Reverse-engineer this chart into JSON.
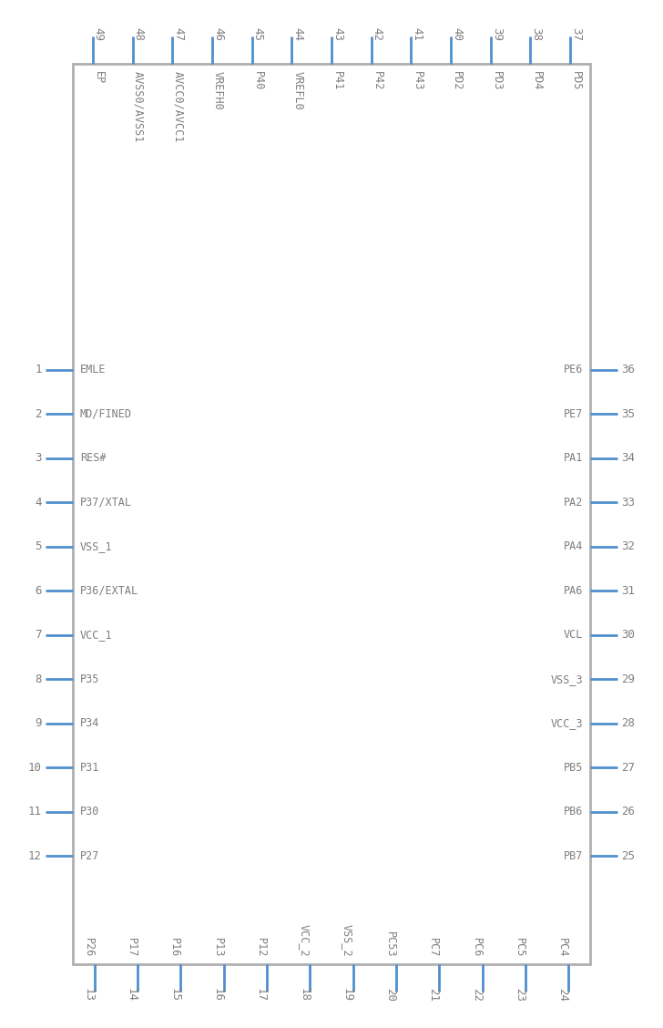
{
  "box_color": "#b0b0b0",
  "pin_color": "#4f8fcd",
  "text_color": "#7f7f7f",
  "bg_color": "#ffffff",
  "top_pins": [
    {
      "num": "49",
      "label": "EP"
    },
    {
      "num": "48",
      "label": "AVSS0/AVSS1"
    },
    {
      "num": "47",
      "label": "AVCC0/AVCC1"
    },
    {
      "num": "46",
      "label": "VREFH0"
    },
    {
      "num": "45",
      "label": "P40"
    },
    {
      "num": "44",
      "label": "VREFL0"
    },
    {
      "num": "43",
      "label": "P41"
    },
    {
      "num": "42",
      "label": "P42"
    },
    {
      "num": "41",
      "label": "P43"
    },
    {
      "num": "40",
      "label": "PD2"
    },
    {
      "num": "39",
      "label": "PD3"
    },
    {
      "num": "38",
      "label": "PD4"
    },
    {
      "num": "37",
      "label": "PD5"
    }
  ],
  "bottom_pins": [
    {
      "num": "13",
      "label": "P26"
    },
    {
      "num": "14",
      "label": "P17"
    },
    {
      "num": "15",
      "label": "P16"
    },
    {
      "num": "16",
      "label": "P13"
    },
    {
      "num": "17",
      "label": "P12"
    },
    {
      "num": "18",
      "label": "VCC_2"
    },
    {
      "num": "19",
      "label": "VSS_2"
    },
    {
      "num": "20",
      "label": "PC53"
    },
    {
      "num": "21",
      "label": "PC7"
    },
    {
      "num": "22",
      "label": "PC6"
    },
    {
      "num": "23",
      "label": "PC5"
    },
    {
      "num": "24",
      "label": "PC4"
    }
  ],
  "left_pins": [
    {
      "num": "1",
      "label": "EMLE"
    },
    {
      "num": "2",
      "label": "MD/FINED"
    },
    {
      "num": "3",
      "label": "RES#"
    },
    {
      "num": "4",
      "label": "P37/XTAL"
    },
    {
      "num": "5",
      "label": "VSS_1"
    },
    {
      "num": "6",
      "label": "P36/EXTAL"
    },
    {
      "num": "7",
      "label": "VCC_1"
    },
    {
      "num": "8",
      "label": "P35"
    },
    {
      "num": "9",
      "label": "P34"
    },
    {
      "num": "10",
      "label": "P31"
    },
    {
      "num": "11",
      "label": "P30"
    },
    {
      "num": "12",
      "label": "P27"
    }
  ],
  "right_pins": [
    {
      "num": "36",
      "label": "PE6"
    },
    {
      "num": "35",
      "label": "PE7"
    },
    {
      "num": "34",
      "label": "PA1"
    },
    {
      "num": "33",
      "label": "PA2"
    },
    {
      "num": "32",
      "label": "PA4"
    },
    {
      "num": "31",
      "label": "PA6"
    },
    {
      "num": "30",
      "label": "VCL"
    },
    {
      "num": "29",
      "label": "VSS_3"
    },
    {
      "num": "28",
      "label": "VCC_3"
    },
    {
      "num": "27",
      "label": "PB5"
    },
    {
      "num": "26",
      "label": "PB6"
    },
    {
      "num": "25",
      "label": "PB7"
    }
  ]
}
